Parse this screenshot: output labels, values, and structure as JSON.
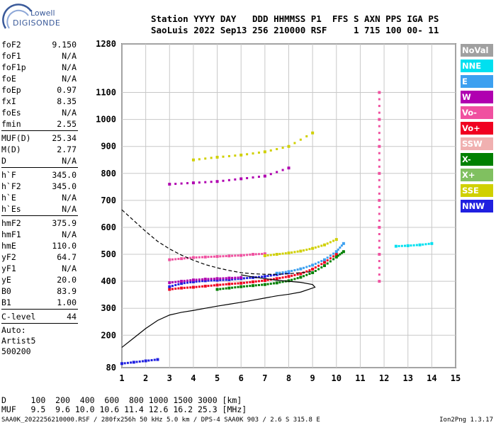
{
  "logo": {
    "line1": "Lowell",
    "line2": "DIGISONDE"
  },
  "header": {
    "line1": "Station YYYY DAY   DDD HHMMSS P1  FFS S AXN PPS IGA PS",
    "line2": "SaoLuis 2022 Sep13 256 210000 RSF     1 715 100 00- 11"
  },
  "params": {
    "group1": [
      {
        "label": "foF2",
        "value": "9.150"
      },
      {
        "label": "foF1",
        "value": "N/A"
      },
      {
        "label": "foF1p",
        "value": "N/A"
      },
      {
        "label": "foE",
        "value": "N/A"
      },
      {
        "label": "foEp",
        "value": "0.97"
      },
      {
        "label": "fxI",
        "value": "8.35"
      },
      {
        "label": "foEs",
        "value": "N/A"
      },
      {
        "label": "fmin",
        "value": "2.55"
      }
    ],
    "group2": [
      {
        "label": "MUF(D)",
        "value": "25.34"
      },
      {
        "label": "M(D)",
        "value": "2.77"
      },
      {
        "label": "D",
        "value": "N/A"
      }
    ],
    "group3": [
      {
        "label": "h`F",
        "value": "345.0"
      },
      {
        "label": "h`F2",
        "value": "345.0"
      },
      {
        "label": "h`E",
        "value": "N/A"
      },
      {
        "label": "h`Es",
        "value": "N/A"
      }
    ],
    "group4": [
      {
        "label": "hmF2",
        "value": "375.9"
      },
      {
        "label": "hmF1",
        "value": "N/A"
      },
      {
        "label": "hmE",
        "value": "110.0"
      },
      {
        "label": "yF2",
        "value": "64.7"
      },
      {
        "label": "yF1",
        "value": "N/A"
      },
      {
        "label": "yE",
        "value": "20.0"
      },
      {
        "label": "B0",
        "value": "83.9"
      },
      {
        "label": "B1",
        "value": "1.00"
      }
    ],
    "group5": [
      {
        "label": "C-level",
        "value": "44"
      }
    ],
    "tail": [
      "Auto:",
      "Artist5",
      "500200"
    ]
  },
  "legend": [
    {
      "label": "NoVal",
      "color": "#a0a0a0"
    },
    {
      "label": "NNE",
      "color": "#00e0f0"
    },
    {
      "label": "E",
      "color": "#3ca0f0"
    },
    {
      "label": "W",
      "color": "#b000b0"
    },
    {
      "label": "Vo-",
      "color": "#f050a0"
    },
    {
      "label": "Vo+",
      "color": "#f00020"
    },
    {
      "label": "SSW",
      "color": "#f0b0b0"
    },
    {
      "label": "X-",
      "color": "#008000"
    },
    {
      "label": "X+",
      "color": "#80c060"
    },
    {
      "label": "SSE",
      "color": "#d0d000"
    },
    {
      "label": "NNW",
      "color": "#2020e0"
    }
  ],
  "footer": {
    "line1": "D     100  200  400  600  800 1000 1500 3000 [km]",
    "line2": "MUF   9.5  9.6 10.0 10.6 11.4 12.6 16.2 25.3 [MHz]",
    "line3": "SAA0K_2022256210000.RSF / 280fx256h 50 kHz 5.0 km / DPS-4 SAA0K 903 / 2.6 S 315.8 E",
    "line4": "Ion2Png 1.3.17"
  },
  "chart_data": {
    "type": "scatter",
    "xlim": [
      1,
      15
    ],
    "ylim": [
      80,
      1280
    ],
    "x_ticks": [
      1,
      2,
      3,
      4,
      5,
      6,
      7,
      8,
      9,
      10,
      11,
      12,
      13,
      14,
      15
    ],
    "y_ticks": [
      80,
      200,
      300,
      400,
      500,
      600,
      700,
      800,
      900,
      1000,
      1100,
      1280
    ],
    "grid": true,
    "legend_position": "right",
    "profile": {
      "color": "#000000",
      "points": [
        [
          1,
          155
        ],
        [
          1.5,
          190
        ],
        [
          2,
          225
        ],
        [
          2.5,
          255
        ],
        [
          3,
          275
        ],
        [
          3.5,
          285
        ],
        [
          4,
          292
        ],
        [
          4.5,
          300
        ],
        [
          5,
          308
        ],
        [
          5.5,
          315
        ],
        [
          6,
          322
        ],
        [
          6.5,
          330
        ],
        [
          7,
          338
        ],
        [
          7.5,
          346
        ],
        [
          8,
          352
        ],
        [
          8.5,
          360
        ],
        [
          8.9,
          372
        ],
        [
          9.1,
          378
        ],
        [
          9.0,
          388
        ],
        [
          8.5,
          396
        ],
        [
          8,
          400
        ],
        [
          7.5,
          404
        ],
        [
          7,
          410
        ],
        [
          6.5,
          416
        ],
        [
          6,
          424
        ]
      ]
    },
    "extrapolation": {
      "color": "#000000",
      "points": [
        [
          1,
          665
        ],
        [
          1.5,
          625
        ],
        [
          2,
          585
        ],
        [
          2.5,
          548
        ],
        [
          3,
          520
        ],
        [
          3.5,
          497
        ],
        [
          4,
          478
        ],
        [
          4.5,
          462
        ],
        [
          5,
          450
        ],
        [
          5.5,
          440
        ],
        [
          6,
          432
        ],
        [
          6.5,
          428
        ],
        [
          7,
          426
        ],
        [
          7.5,
          426
        ],
        [
          8,
          428
        ],
        [
          8.5,
          432
        ],
        [
          9,
          436
        ]
      ]
    },
    "echo_traces": [
      {
        "color": "#f00020",
        "points": [
          [
            3,
            370
          ],
          [
            3.5,
            375
          ],
          [
            4,
            378
          ],
          [
            4.5,
            382
          ],
          [
            5,
            386
          ],
          [
            5.5,
            390
          ],
          [
            6,
            393
          ],
          [
            6.5,
            398
          ],
          [
            7,
            403
          ],
          [
            7.5,
            410
          ],
          [
            8,
            418
          ],
          [
            8.5,
            428
          ],
          [
            9,
            445
          ],
          [
            9.5,
            470
          ],
          [
            10,
            500
          ]
        ]
      },
      {
        "color": "#2020e0",
        "points": [
          [
            3,
            380
          ],
          [
            3.5,
            392
          ],
          [
            4,
            398
          ],
          [
            4.5,
            402
          ],
          [
            5,
            404
          ],
          [
            5.5,
            406
          ],
          [
            6,
            410
          ],
          [
            6.5,
            414
          ],
          [
            7,
            418
          ],
          [
            7.5,
            425
          ],
          [
            8,
            432
          ]
        ]
      },
      {
        "color": "#b000b0",
        "points": [
          [
            3,
            395
          ],
          [
            3.5,
            400
          ],
          [
            4,
            405
          ],
          [
            4.5,
            408
          ],
          [
            5,
            410
          ],
          [
            5.5,
            412
          ],
          [
            6,
            414
          ]
        ]
      },
      {
        "color": "#008000",
        "points": [
          [
            5,
            370
          ],
          [
            5.5,
            375
          ],
          [
            6,
            380
          ],
          [
            6.5,
            384
          ],
          [
            7,
            388
          ],
          [
            7.5,
            394
          ],
          [
            8,
            402
          ],
          [
            8.5,
            415
          ],
          [
            9,
            432
          ],
          [
            9.5,
            458
          ],
          [
            10,
            490
          ],
          [
            10.3,
            510
          ]
        ]
      },
      {
        "color": "#3ca0f0",
        "points": [
          [
            7.5,
            430
          ],
          [
            8,
            436
          ],
          [
            8.5,
            446
          ],
          [
            9,
            460
          ],
          [
            9.5,
            480
          ],
          [
            10,
            510
          ],
          [
            10.3,
            540
          ]
        ]
      },
      {
        "color": "#f050a0",
        "points": [
          [
            3,
            480
          ],
          [
            3.5,
            484
          ],
          [
            4,
            488
          ],
          [
            4.5,
            490
          ],
          [
            5,
            492
          ],
          [
            5.5,
            494
          ],
          [
            6,
            496
          ],
          [
            6.5,
            500
          ],
          [
            7,
            502
          ]
        ]
      },
      {
        "color": "#d0d000",
        "points": [
          [
            7,
            495
          ],
          [
            7.5,
            500
          ],
          [
            8,
            505
          ],
          [
            8.5,
            512
          ],
          [
            9,
            522
          ],
          [
            9.5,
            535
          ],
          [
            10,
            555
          ]
        ]
      },
      {
        "color": "#d0d000",
        "points": [
          [
            4,
            850
          ],
          [
            5,
            860
          ],
          [
            6,
            868
          ],
          [
            7,
            880
          ],
          [
            8,
            900
          ],
          [
            9,
            950
          ]
        ]
      },
      {
        "color": "#b000b0",
        "points": [
          [
            3,
            760
          ],
          [
            4,
            765
          ],
          [
            5,
            770
          ],
          [
            6,
            780
          ],
          [
            7,
            790
          ],
          [
            8,
            820
          ]
        ]
      },
      {
        "color": "#f050a0",
        "points": [
          [
            11.8,
            400
          ],
          [
            11.8,
            500
          ],
          [
            11.8,
            600
          ],
          [
            11.8,
            700
          ],
          [
            11.8,
            800
          ],
          [
            11.8,
            900
          ],
          [
            11.8,
            1000
          ],
          [
            11.8,
            1100
          ]
        ]
      },
      {
        "color": "#00e0f0",
        "points": [
          [
            12.5,
            530
          ],
          [
            13,
            532
          ],
          [
            13.5,
            535
          ],
          [
            14,
            540
          ]
        ]
      },
      {
        "color": "#2020e0",
        "points": [
          [
            1,
            95
          ],
          [
            1.5,
            100
          ],
          [
            2,
            105
          ],
          [
            2.5,
            110
          ]
        ]
      }
    ]
  }
}
